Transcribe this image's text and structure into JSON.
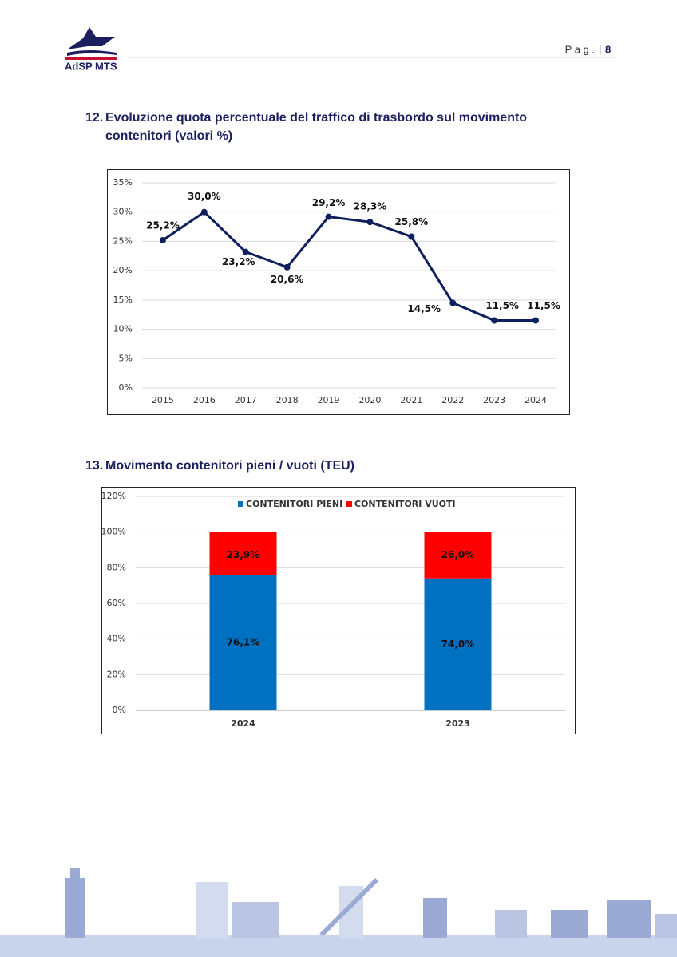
{
  "header": {
    "logo_text": "AdSP MTS",
    "page_label": "P a g .",
    "page_number": "8"
  },
  "sections": [
    {
      "number": "12.",
      "title_lines": [
        "Evoluzione quota percentuale del traffico di trasbordo sul movimento",
        "contenitori (valori %)"
      ]
    },
    {
      "number": "13.",
      "title_lines": [
        "Movimento contenitori pieni / vuoti (TEU)"
      ]
    }
  ],
  "chart_data": [
    {
      "type": "line",
      "categories": [
        "2015",
        "2016",
        "2017",
        "2018",
        "2019",
        "2020",
        "2021",
        "2022",
        "2023",
        "2024"
      ],
      "values": [
        25.2,
        30.0,
        23.2,
        20.6,
        29.2,
        28.3,
        25.8,
        14.5,
        11.5,
        11.5
      ],
      "value_labels": [
        "25,2%",
        "30,0%",
        "23,2%",
        "20,6%",
        "29,2%",
        "28,3%",
        "25,8%",
        "14,5%",
        "11,5%",
        "11,5%"
      ],
      "color": "#0d1f5c",
      "ylim": [
        0,
        35
      ],
      "yticks": [
        {
          "value": 0,
          "label": "0%"
        },
        {
          "value": 5,
          "label": "5%"
        },
        {
          "value": 10,
          "label": "10%"
        },
        {
          "value": 15,
          "label": "15%"
        },
        {
          "value": 20,
          "label": "20%"
        },
        {
          "value": 25,
          "label": "25%"
        },
        {
          "value": 30,
          "label": "30%"
        },
        {
          "value": 35,
          "label": "35%"
        }
      ],
      "grid": true
    },
    {
      "type": "stacked-bar",
      "categories": [
        "2024",
        "2023"
      ],
      "series": [
        {
          "name": "CONTENITORI PIENI",
          "color": "#0070c0",
          "values": [
            76.1,
            74.0
          ],
          "value_labels": [
            "76,1%",
            "74,0%"
          ]
        },
        {
          "name": "CONTENITORI VUOTI",
          "color": "#ff0000",
          "values": [
            23.9,
            26.0
          ],
          "value_labels": [
            "23,9%",
            "26,0%"
          ]
        }
      ],
      "ylim": [
        0,
        120
      ],
      "yticks": [
        {
          "value": 0,
          "label": "0%"
        },
        {
          "value": 20,
          "label": "20%"
        },
        {
          "value": 40,
          "label": "40%"
        },
        {
          "value": 60,
          "label": "60%"
        },
        {
          "value": 80,
          "label": "80%"
        },
        {
          "value": 100,
          "label": "100%"
        },
        {
          "value": 120,
          "label": "120%"
        }
      ],
      "grid": true,
      "legend": "top"
    }
  ]
}
